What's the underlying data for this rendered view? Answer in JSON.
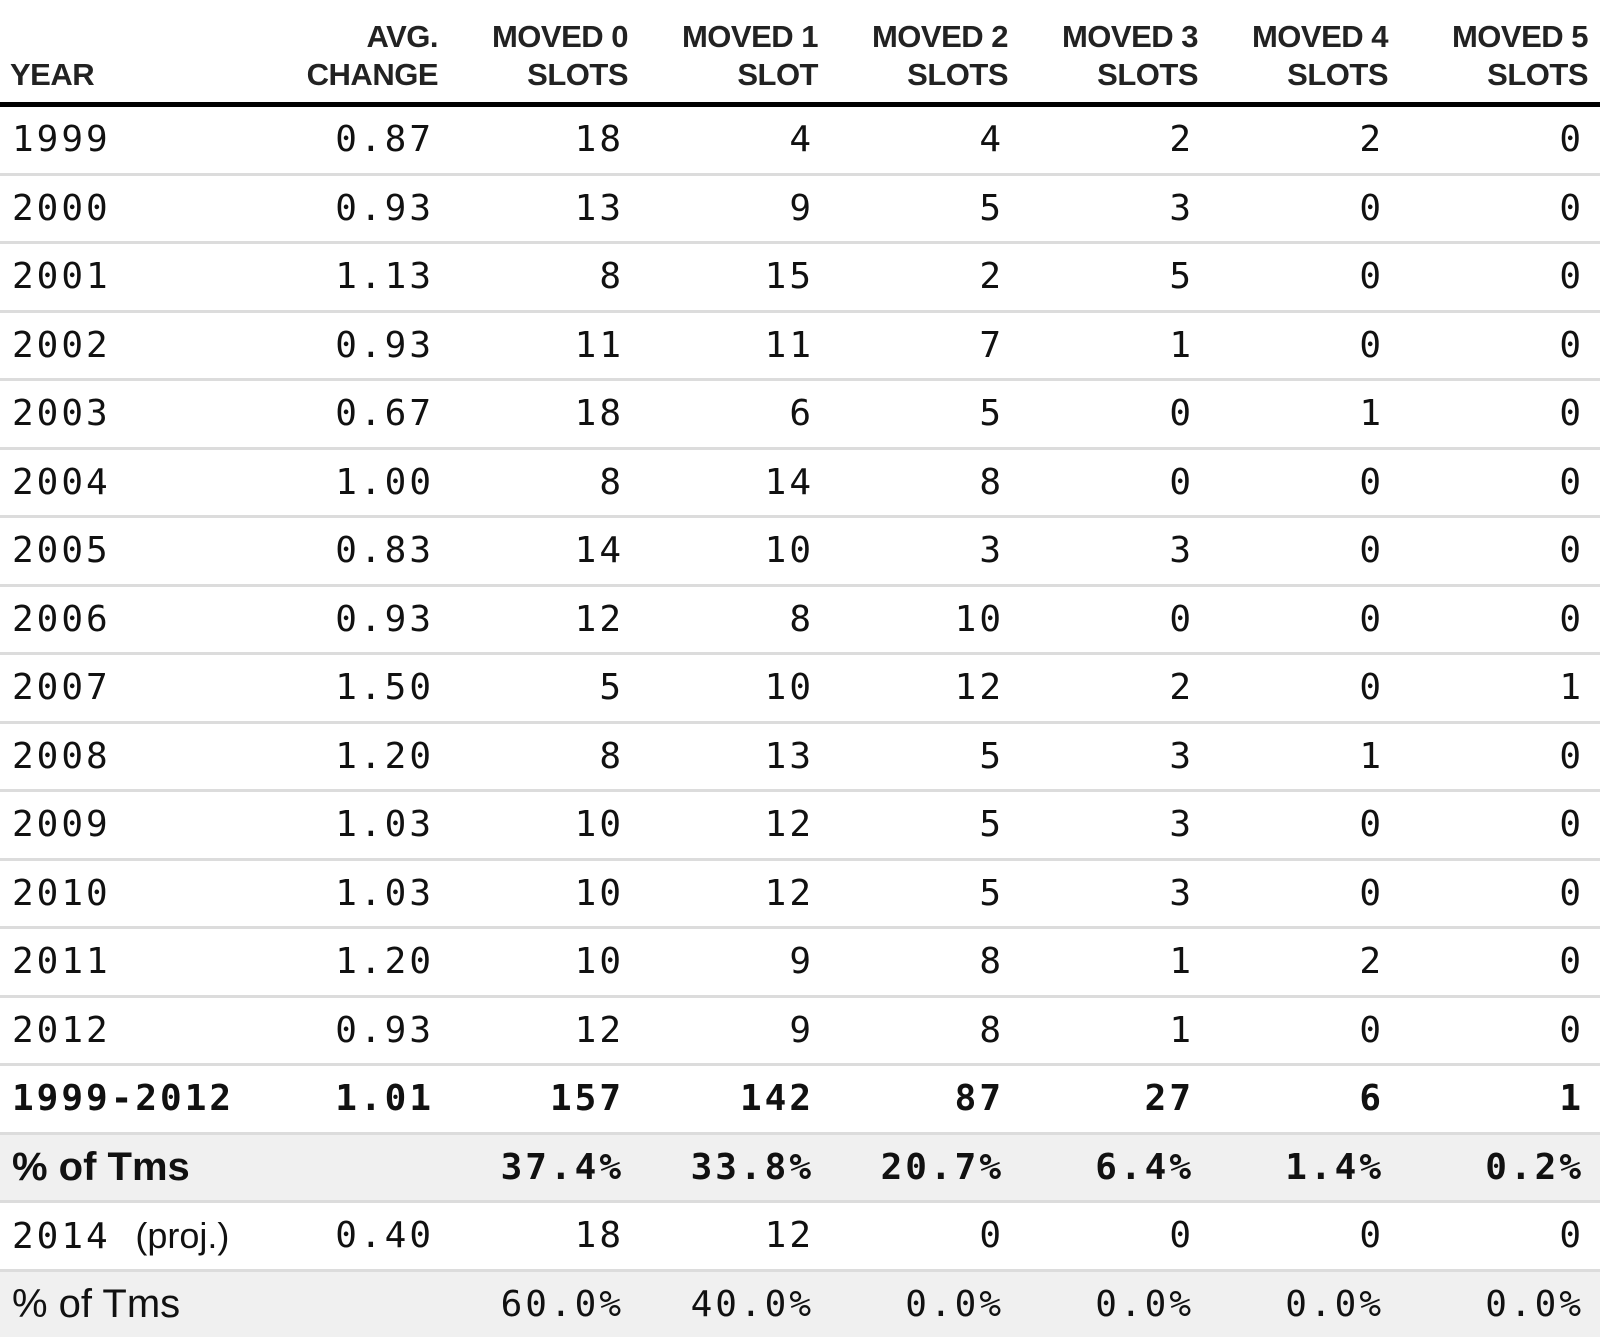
{
  "table": {
    "headers": [
      [
        "YEAR"
      ],
      [
        "AVG.",
        "CHANGE"
      ],
      [
        "MOVED 0",
        "SLOTS"
      ],
      [
        "MOVED 1",
        "SLOT"
      ],
      [
        "MOVED 2",
        "SLOTS"
      ],
      [
        "MOVED 3",
        "SLOTS"
      ],
      [
        "MOVED 4",
        "SLOTS"
      ],
      [
        "MOVED 5",
        "SLOTS"
      ]
    ],
    "rows": [
      [
        "1999",
        "0.87",
        "18",
        "4",
        "4",
        "2",
        "2",
        "0"
      ],
      [
        "2000",
        "0.93",
        "13",
        "9",
        "5",
        "3",
        "0",
        "0"
      ],
      [
        "2001",
        "1.13",
        "8",
        "15",
        "2",
        "5",
        "0",
        "0"
      ],
      [
        "2002",
        "0.93",
        "11",
        "11",
        "7",
        "1",
        "0",
        "0"
      ],
      [
        "2003",
        "0.67",
        "18",
        "6",
        "5",
        "0",
        "1",
        "0"
      ],
      [
        "2004",
        "1.00",
        "8",
        "14",
        "8",
        "0",
        "0",
        "0"
      ],
      [
        "2005",
        "0.83",
        "14",
        "10",
        "3",
        "3",
        "0",
        "0"
      ],
      [
        "2006",
        "0.93",
        "12",
        "8",
        "10",
        "0",
        "0",
        "0"
      ],
      [
        "2007",
        "1.50",
        "5",
        "10",
        "12",
        "2",
        "0",
        "1"
      ],
      [
        "2008",
        "1.20",
        "8",
        "13",
        "5",
        "3",
        "1",
        "0"
      ],
      [
        "2009",
        "1.03",
        "10",
        "12",
        "5",
        "3",
        "0",
        "0"
      ],
      [
        "2010",
        "1.03",
        "10",
        "12",
        "5",
        "3",
        "0",
        "0"
      ],
      [
        "2011",
        "1.20",
        "10",
        "9",
        "8",
        "1",
        "2",
        "0"
      ],
      [
        "2012",
        "0.93",
        "12",
        "9",
        "8",
        "1",
        "0",
        "0"
      ]
    ],
    "total": [
      "1999-2012",
      "1.01",
      "157",
      "142",
      "87",
      "27",
      "6",
      "1"
    ],
    "pct_total": [
      "% of Tms",
      "",
      "37.4%",
      "33.8%",
      "20.7%",
      "6.4%",
      "1.4%",
      "0.2%"
    ],
    "projection": [
      "2014",
      "(proj.)",
      "0.40",
      "18",
      "12",
      "0",
      "0",
      "0",
      "0"
    ],
    "pct_projection": [
      "% of Tms",
      "",
      "60.0%",
      "40.0%",
      "0.0%",
      "0.0%",
      "0.0%",
      "0.0%"
    ]
  }
}
